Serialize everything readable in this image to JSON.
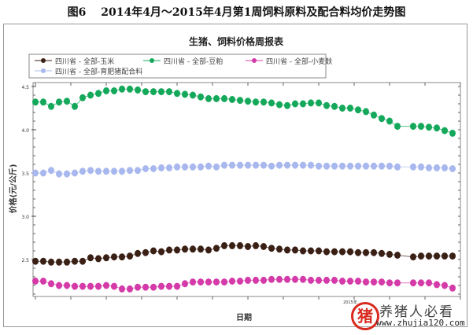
{
  "figure_title": "图6　 2014年4月～2015年4月第1周饲料原料及配合料均价走势图",
  "chart_data": {
    "type": "line",
    "title": "生猪、饲料价格周报表",
    "xlabel": "日期",
    "ylabel": "价格(元/公斤)",
    "ylim": [
      2.08,
      4.52
    ],
    "yticks": [
      "2.5",
      "3.0",
      "3.5",
      "4.0",
      "4.5"
    ],
    "xtick_labels": [
      "2015年"
    ],
    "legend_position": "top",
    "grid": false,
    "series": [
      {
        "name": "四川省 - 全部-玉米",
        "color": "#3a1f14",
        "values": [
          2.48,
          2.48,
          2.47,
          2.47,
          2.47,
          2.48,
          2.48,
          2.52,
          2.51,
          2.52,
          2.53,
          2.53,
          2.54,
          2.57,
          2.58,
          2.6,
          2.59,
          2.61,
          2.61,
          2.62,
          2.62,
          2.62,
          2.61,
          2.63,
          2.66,
          2.66,
          2.66,
          2.65,
          2.66,
          2.65,
          2.63,
          2.62,
          2.61,
          2.61,
          2.6,
          2.6,
          2.6,
          2.59,
          2.59,
          2.59,
          2.59,
          2.58,
          2.58,
          2.58,
          2.57,
          2.56,
          2.55,
          null,
          2.53,
          2.54,
          2.54,
          2.54,
          2.54,
          2.54
        ]
      },
      {
        "name": "四川省 - 全部-豆粕",
        "color": "#14a85a",
        "values": [
          4.32,
          4.32,
          4.27,
          4.32,
          4.33,
          4.27,
          4.37,
          4.4,
          4.42,
          4.45,
          4.45,
          4.47,
          4.47,
          4.46,
          4.44,
          4.44,
          4.44,
          4.44,
          4.42,
          4.41,
          4.4,
          4.38,
          4.36,
          4.36,
          4.36,
          4.35,
          4.34,
          4.33,
          4.32,
          4.32,
          4.31,
          4.29,
          4.28,
          4.3,
          4.3,
          4.31,
          4.31,
          4.28,
          4.27,
          4.25,
          4.25,
          4.23,
          4.21,
          4.17,
          4.13,
          4.1,
          4.04,
          null,
          4.04,
          4.04,
          4.03,
          4.02,
          3.99,
          3.96
        ]
      },
      {
        "name": "四川省 - 全部-小麦麸",
        "color": "#d43aa8",
        "values": [
          2.25,
          2.25,
          2.22,
          2.2,
          2.2,
          2.19,
          2.19,
          2.19,
          2.19,
          2.2,
          2.19,
          2.16,
          2.16,
          2.18,
          2.18,
          2.18,
          2.19,
          2.19,
          2.19,
          2.22,
          2.24,
          2.24,
          2.24,
          2.24,
          2.24,
          2.25,
          2.25,
          2.26,
          2.26,
          2.26,
          2.27,
          2.27,
          2.27,
          2.27,
          2.27,
          2.26,
          2.26,
          2.26,
          2.26,
          2.25,
          2.25,
          2.25,
          2.24,
          2.24,
          2.24,
          2.23,
          2.23,
          null,
          2.23,
          2.23,
          2.23,
          2.21,
          2.2,
          2.17
        ]
      },
      {
        "name": "四川省 - 全部-育肥猪配合料",
        "color": "#a8b8ee",
        "values": [
          3.5,
          3.5,
          3.53,
          3.49,
          3.49,
          3.5,
          3.52,
          3.53,
          3.52,
          3.52,
          3.52,
          3.52,
          3.53,
          3.53,
          3.55,
          3.55,
          3.56,
          3.56,
          3.57,
          3.57,
          3.57,
          3.57,
          3.58,
          3.57,
          3.59,
          3.59,
          3.59,
          3.59,
          3.59,
          3.59,
          3.58,
          3.59,
          3.59,
          3.59,
          3.59,
          3.59,
          3.58,
          3.58,
          3.58,
          3.58,
          3.58,
          3.58,
          3.58,
          3.58,
          3.58,
          3.58,
          3.57,
          null,
          3.57,
          3.57,
          3.56,
          3.56,
          3.56,
          3.55
        ]
      }
    ]
  },
  "watermark": {
    "text": "养猪人必看",
    "url": "www.zhujia120.com",
    "logo": "猪"
  }
}
